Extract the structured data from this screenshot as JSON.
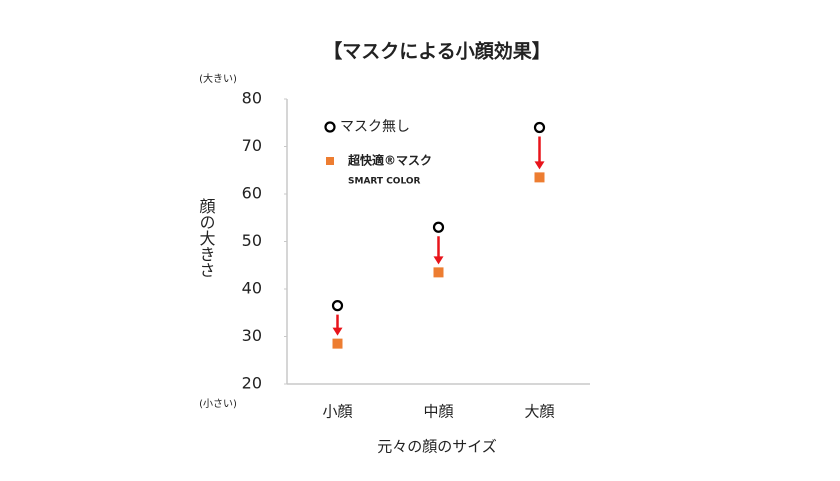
{
  "chart_data": {
    "type": "scatter",
    "title": "【マスクによる小顔効果】",
    "y_label": "顔の大きさ",
    "x_label": "元々の顔のサイズ",
    "annotations": [
      "(大きい)",
      "(小さい)"
    ],
    "categories": [
      "小顔",
      "中顔",
      "大顔"
    ],
    "series": [
      {
        "name": "マスク無し",
        "color": "#000000",
        "marker": "circle",
        "values": [
          36.5,
          53,
          74
        ]
      },
      {
        "name": "超快適®マスク",
        "subtitle": "SMART COLOR",
        "color": "#ed7d31",
        "marker": "square",
        "values": [
          28.5,
          43.5,
          63.5
        ]
      }
    ],
    "ylim": [
      20,
      80
    ],
    "yticks": [
      20,
      30,
      40,
      50,
      60,
      70,
      80
    ],
    "grid": false,
    "arrow_color": "#e8141b"
  }
}
